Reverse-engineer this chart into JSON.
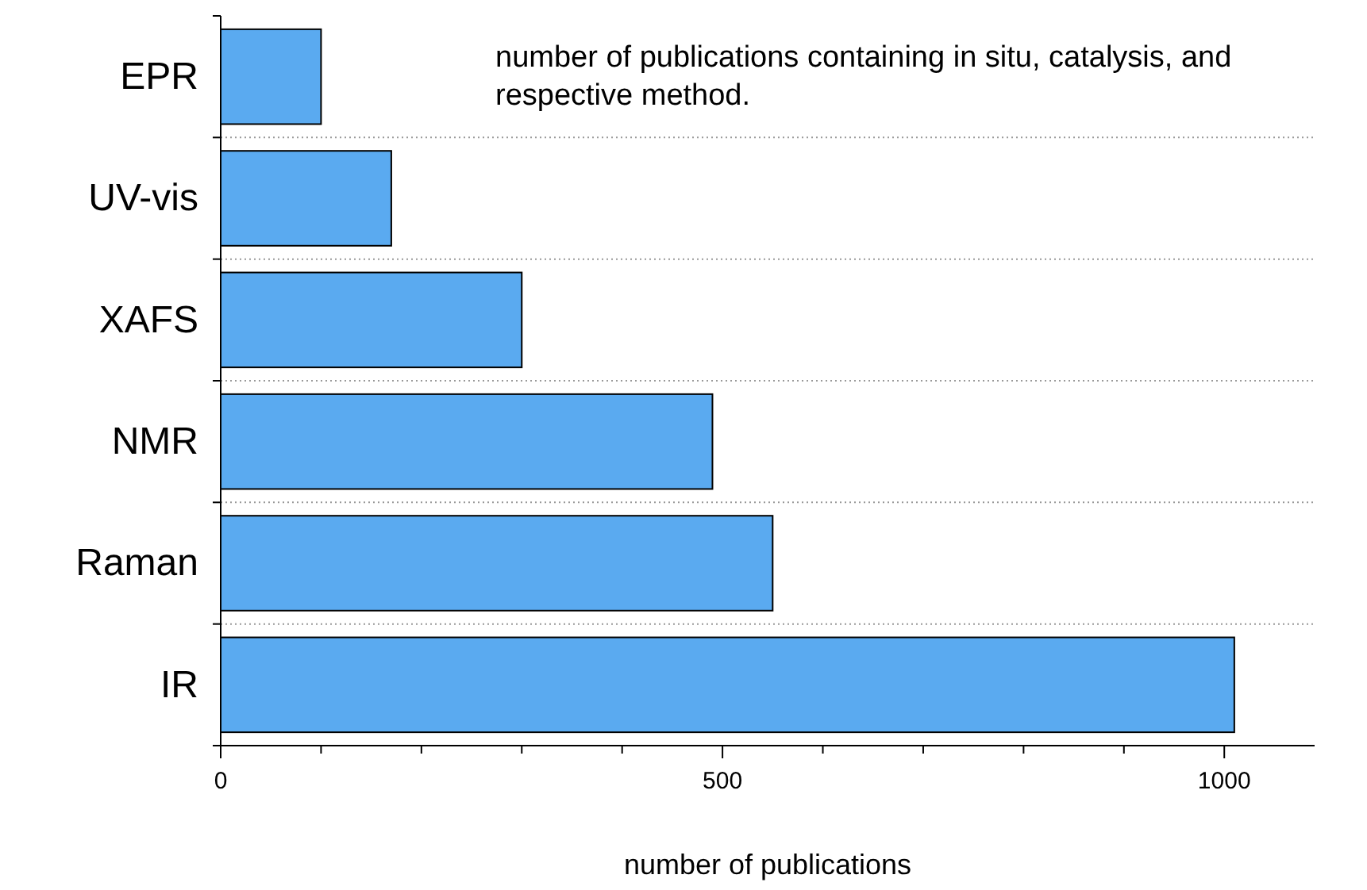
{
  "chart_data": {
    "type": "bar",
    "orientation": "horizontal",
    "xlabel": "number of publications",
    "annotations": [
      "number of publications containing in situ, catalysis, and respective method."
    ],
    "categories": [
      "EPR",
      "UV-vis",
      "XAFS",
      "NMR",
      "Raman",
      "IR"
    ],
    "values": [
      100,
      170,
      300,
      490,
      550,
      1010
    ],
    "color": "#5aaaf0",
    "xlim": [
      0,
      1090
    ],
    "xticks": [
      0,
      {
        "value": 100,
        "label": null
      },
      {
        "value": 200,
        "label": null
      },
      {
        "value": 300,
        "label": null
      },
      {
        "value": 400,
        "label": null
      },
      500,
      {
        "value": 600,
        "label": null
      },
      {
        "value": 700,
        "label": null
      },
      {
        "value": 800,
        "label": null
      },
      {
        "value": 900,
        "label": null
      },
      1000
    ],
    "grid": "y"
  }
}
